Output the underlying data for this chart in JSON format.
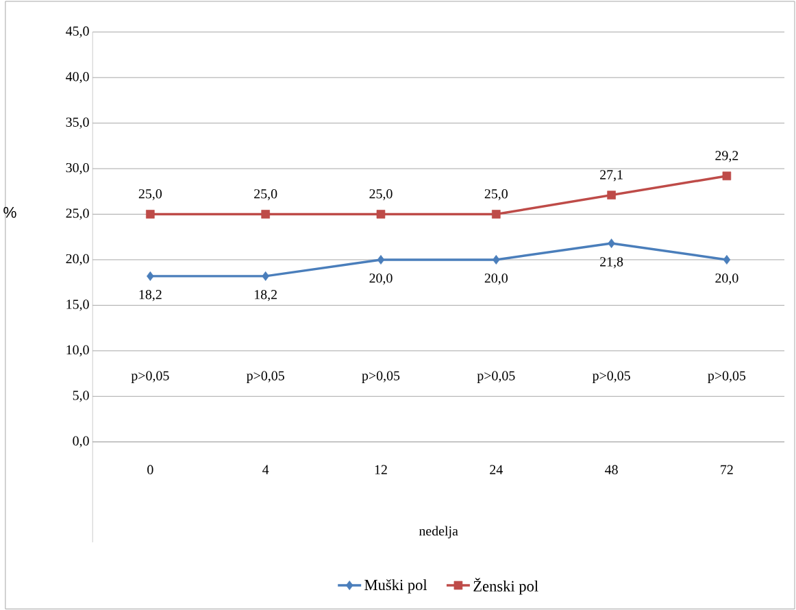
{
  "chart_data": {
    "type": "line",
    "xlabel": "nedelja",
    "ylabel": "%",
    "categories": [
      "0",
      "4",
      "12",
      "24",
      "48",
      "72"
    ],
    "series": [
      {
        "name": "Muški pol",
        "color": "#4a7ebb",
        "marker": "diamond",
        "values": [
          18.2,
          18.2,
          20.0,
          20.0,
          21.8,
          20.0
        ],
        "value_labels": [
          "18,2",
          "18,2",
          "20,0",
          "20,0",
          "21,8",
          "20,0"
        ]
      },
      {
        "name": "Ženski pol",
        "color": "#be4b48",
        "marker": "square",
        "values": [
          25.0,
          25.0,
          25.0,
          25.0,
          27.1,
          29.2
        ],
        "value_labels": [
          "25,0",
          "25,0",
          "25,0",
          "25,0",
          "27,1",
          "29,2"
        ]
      }
    ],
    "ylim": [
      0,
      45
    ],
    "yticks": [
      {
        "value": 0,
        "label": "0,0"
      },
      {
        "value": 5,
        "label": "5,0"
      },
      {
        "value": 10,
        "label": "10,0"
      },
      {
        "value": 15,
        "label": "15,0"
      },
      {
        "value": 20,
        "label": "20,0"
      },
      {
        "value": 25,
        "label": "25,0"
      },
      {
        "value": 30,
        "label": "30,0"
      },
      {
        "value": 35,
        "label": "35,0"
      },
      {
        "value": 40,
        "label": "40,0"
      },
      {
        "value": 45,
        "label": "45,0"
      }
    ],
    "grid": "y",
    "legend": "bottom",
    "line_style": "solid",
    "annotations": [
      "p>0,05",
      "p>0,05",
      "p>0,05",
      "p>0,05",
      "p>0,05",
      "p>0,05"
    ]
  }
}
